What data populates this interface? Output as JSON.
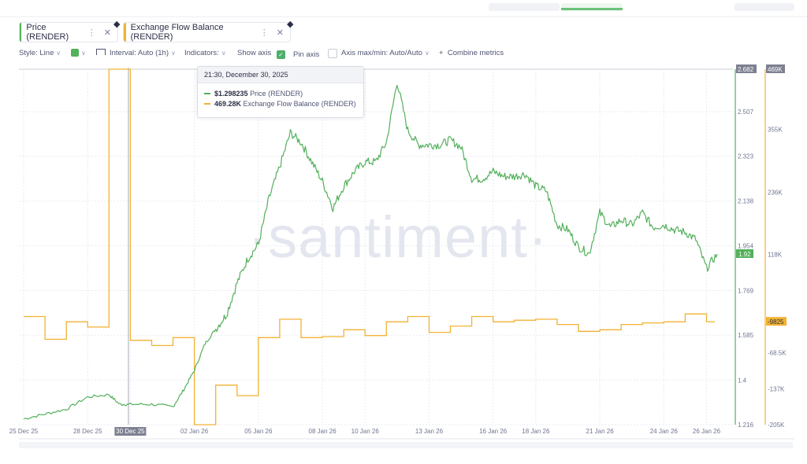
{
  "tabs": [
    {
      "label": "Price (RENDER)",
      "color": "#53b05b"
    },
    {
      "label": "Exchange Flow Balance (RENDER)",
      "color": "#f2b233"
    }
  ],
  "toolbar": {
    "style_label": "Style: Line",
    "interval_label": "Interval: Auto (1h)",
    "indicators_label": "Indicators:",
    "show_axis_label": "Show axis",
    "pin_axis_label": "Pin axis",
    "axis_maxmin_label": "Axis max/min: Auto/Auto",
    "combine_label": "Combine metrics"
  },
  "tooltip": {
    "date": "21:30, December 30, 2025",
    "price_value": "$1.298235",
    "price_name": "Price (RENDER)",
    "flow_value": "469.28K",
    "flow_name": "Exchange Flow Balance (RENDER)"
  },
  "watermark": "·santiment·",
  "colors": {
    "price": "#53b05b",
    "flow": "#f2b233",
    "grid": "#e9ebf1",
    "cursor": "#9aa0a8"
  },
  "chart_data": {
    "type": "line",
    "x_ticks": [
      "25 Dec 25",
      "28 Dec 25",
      "30 Dec 25",
      "02 Jan 26",
      "05 Jan 26",
      "08 Jan 26",
      "10 Jan 26",
      "13 Jan 26",
      "16 Jan 26",
      "18 Jan 26",
      "21 Jan 26",
      "24 Jan 26",
      "26 Jan 26"
    ],
    "highlighted_x_tick": "30 Dec 25",
    "price_axis": {
      "ticks": [
        "2.507",
        "2.323",
        "2.138",
        "1.954",
        "1.769",
        "1.585",
        "1.4",
        "1.216"
      ],
      "max_label": "2.682",
      "current_label": "1.92",
      "range": [
        1.216,
        2.682
      ]
    },
    "flow_axis": {
      "ticks": [
        "355K",
        "236K",
        "118K",
        "-68.5K",
        "-137K",
        "-205K"
      ],
      "max_label": "469K",
      "current_label": "-9825",
      "range": [
        -205000,
        469000
      ]
    },
    "series": [
      {
        "name": "Price (RENDER)",
        "axis": "left",
        "points": [
          [
            "25 Dec",
            1.24
          ],
          [
            "26 Dec",
            1.26
          ],
          [
            "27 Dec",
            1.28
          ],
          [
            "28 Dec",
            1.33
          ],
          [
            "29 Dec",
            1.34
          ],
          [
            "29 Dec 12:00",
            1.3
          ],
          [
            "30 Dec",
            1.3
          ],
          [
            "31 Dec",
            1.3
          ],
          [
            "01 Jan",
            1.29
          ],
          [
            "01 Jan 12:00",
            1.36
          ],
          [
            "02 Jan",
            1.44
          ],
          [
            "02 Jan 12:00",
            1.55
          ],
          [
            "03 Jan",
            1.61
          ],
          [
            "03 Jan 12:00",
            1.67
          ],
          [
            "04 Jan",
            1.8
          ],
          [
            "04 Jan 12:00",
            1.9
          ],
          [
            "05 Jan",
            1.96
          ],
          [
            "05 Jan 12:00",
            2.15
          ],
          [
            "06 Jan",
            2.28
          ],
          [
            "06 Jan 12:00",
            2.42
          ],
          [
            "07 Jan",
            2.38
          ],
          [
            "07 Jan 12:00",
            2.3
          ],
          [
            "08 Jan",
            2.22
          ],
          [
            "08 Jan 12:00",
            2.11
          ],
          [
            "09 Jan",
            2.2
          ],
          [
            "09 Jan 12:00",
            2.26
          ],
          [
            "10 Jan",
            2.3
          ],
          [
            "10 Jan 12:00",
            2.3
          ],
          [
            "11 Jan",
            2.38
          ],
          [
            "11 Jan 12:00",
            2.63
          ],
          [
            "12 Jan",
            2.43
          ],
          [
            "12 Jan 12:00",
            2.37
          ],
          [
            "13 Jan",
            2.37
          ],
          [
            "13 Jan 12:00",
            2.37
          ],
          [
            "14 Jan",
            2.39
          ],
          [
            "14 Jan 12:00",
            2.36
          ],
          [
            "15 Jan",
            2.23
          ],
          [
            "15 Jan 12:00",
            2.23
          ],
          [
            "16 Jan",
            2.26
          ],
          [
            "16 Jan 12:00",
            2.24
          ],
          [
            "17 Jan",
            2.24
          ],
          [
            "17 Jan 12:00",
            2.25
          ],
          [
            "18 Jan",
            2.2
          ],
          [
            "18 Jan 12:00",
            2.18
          ],
          [
            "19 Jan",
            2.04
          ],
          [
            "19 Jan 12:00",
            2.02
          ],
          [
            "20 Jan",
            1.95
          ],
          [
            "20 Jan 12:00",
            1.92
          ],
          [
            "21 Jan",
            2.09
          ],
          [
            "21 Jan 12:00",
            2.03
          ],
          [
            "22 Jan",
            2.06
          ],
          [
            "22 Jan 12:00",
            2.04
          ],
          [
            "23 Jan",
            2.09
          ],
          [
            "23 Jan 12:00",
            2.03
          ],
          [
            "24 Jan",
            2.04
          ],
          [
            "24 Jan 12:00",
            2.02
          ],
          [
            "25 Jan",
            2.01
          ],
          [
            "25 Jan 12:00",
            1.98
          ],
          [
            "26 Jan",
            1.86
          ],
          [
            "26 Jan 12:00",
            1.92
          ]
        ]
      },
      {
        "name": "Exchange Flow Balance (RENDER)",
        "axis": "right",
        "step": true,
        "points": [
          [
            "25 Dec",
            0
          ],
          [
            "26 Dec",
            -43000
          ],
          [
            "27 Dec",
            -10000
          ],
          [
            "28 Dec",
            -20000
          ],
          [
            "29 Dec",
            469000
          ],
          [
            "30 Dec",
            -45000
          ],
          [
            "31 Dec",
            -55000
          ],
          [
            "01 Jan",
            -40000
          ],
          [
            "02 Jan",
            -205000
          ],
          [
            "03 Jan",
            -130000
          ],
          [
            "04 Jan",
            -150000
          ],
          [
            "05 Jan",
            -40000
          ],
          [
            "06 Jan",
            -5000
          ],
          [
            "07 Jan",
            -40000
          ],
          [
            "08 Jan",
            -38000
          ],
          [
            "09 Jan",
            -25000
          ],
          [
            "10 Jan",
            -36000
          ],
          [
            "11 Jan",
            -10000
          ],
          [
            "12 Jan",
            0
          ],
          [
            "13 Jan",
            -30000
          ],
          [
            "14 Jan",
            -18000
          ],
          [
            "15 Jan",
            0
          ],
          [
            "16 Jan",
            -10000
          ],
          [
            "17 Jan",
            -7000
          ],
          [
            "18 Jan",
            -5000
          ],
          [
            "19 Jan",
            -15000
          ],
          [
            "20 Jan",
            -28000
          ],
          [
            "21 Jan",
            -25000
          ],
          [
            "22 Jan",
            -15000
          ],
          [
            "23 Jan",
            -12000
          ],
          [
            "24 Jan",
            -10000
          ],
          [
            "25 Jan",
            5000
          ],
          [
            "26 Jan",
            -9825
          ]
        ]
      }
    ]
  }
}
